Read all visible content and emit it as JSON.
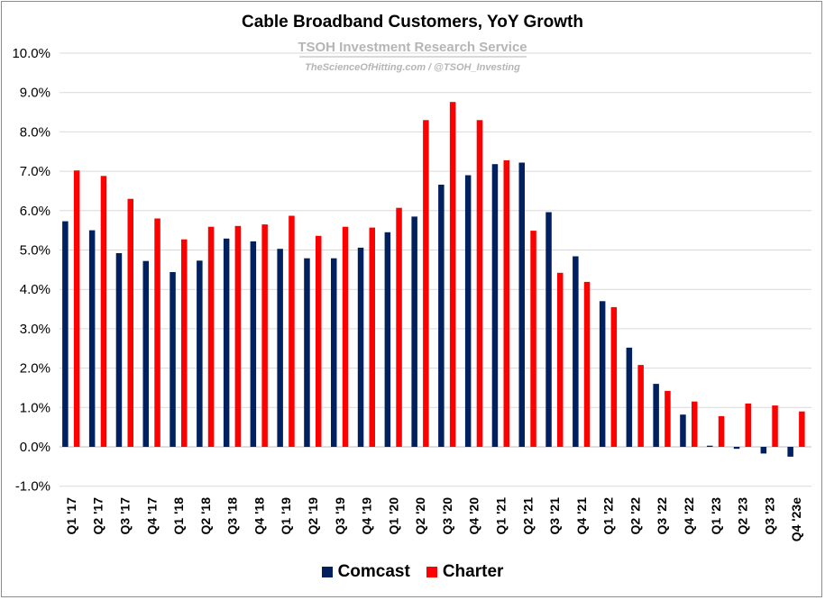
{
  "chart_data": {
    "type": "bar",
    "title": "Cable Broadband Customers, YoY Growth",
    "subtitle": "TSOH Investment Research Service",
    "credit": "TheScienceOfHitting.com / @TSOH_Investing",
    "categories": [
      "Q1 '17",
      "Q2 '17",
      "Q3 '17",
      "Q4 '17",
      "Q1 '18",
      "Q2 '18",
      "Q3 '18",
      "Q4 '18",
      "Q1 '19",
      "Q2 '19",
      "Q3 '19",
      "Q4 '19",
      "Q1 '20",
      "Q2 '20",
      "Q3 '20",
      "Q4 '20",
      "Q1 '21",
      "Q2 '21",
      "Q3 '21",
      "Q4 '21",
      "Q1 '22",
      "Q2 '22",
      "Q3 '22",
      "Q4 '22",
      "Q1 '23",
      "Q2 '23",
      "Q3 '23",
      "Q4 '23e"
    ],
    "series": [
      {
        "name": "Comcast",
        "color": "#002060",
        "values": [
          5.73,
          5.5,
          4.92,
          4.72,
          4.44,
          4.73,
          5.29,
          5.22,
          5.03,
          4.79,
          4.79,
          5.06,
          5.45,
          5.85,
          6.66,
          6.9,
          7.18,
          7.22,
          5.96,
          4.84,
          3.7,
          2.52,
          1.6,
          0.82,
          0.03,
          -0.05,
          -0.17,
          -0.25
        ]
      },
      {
        "name": "Charter",
        "color": "#ff0000",
        "values": [
          7.02,
          6.88,
          6.3,
          5.8,
          5.27,
          5.59,
          5.61,
          5.65,
          5.87,
          5.36,
          5.59,
          5.57,
          6.07,
          8.3,
          8.76,
          8.3,
          7.28,
          5.49,
          4.42,
          4.19,
          3.55,
          2.08,
          1.42,
          1.15,
          0.78,
          1.1,
          1.05,
          0.9
        ]
      }
    ],
    "y_ticks": [
      "-1.0%",
      "0.0%",
      "1.0%",
      "2.0%",
      "3.0%",
      "4.0%",
      "5.0%",
      "6.0%",
      "7.0%",
      "8.0%",
      "9.0%",
      "10.0%"
    ],
    "ylim": [
      -1.0,
      10.0
    ],
    "grid": true,
    "legend_position": "bottom"
  }
}
